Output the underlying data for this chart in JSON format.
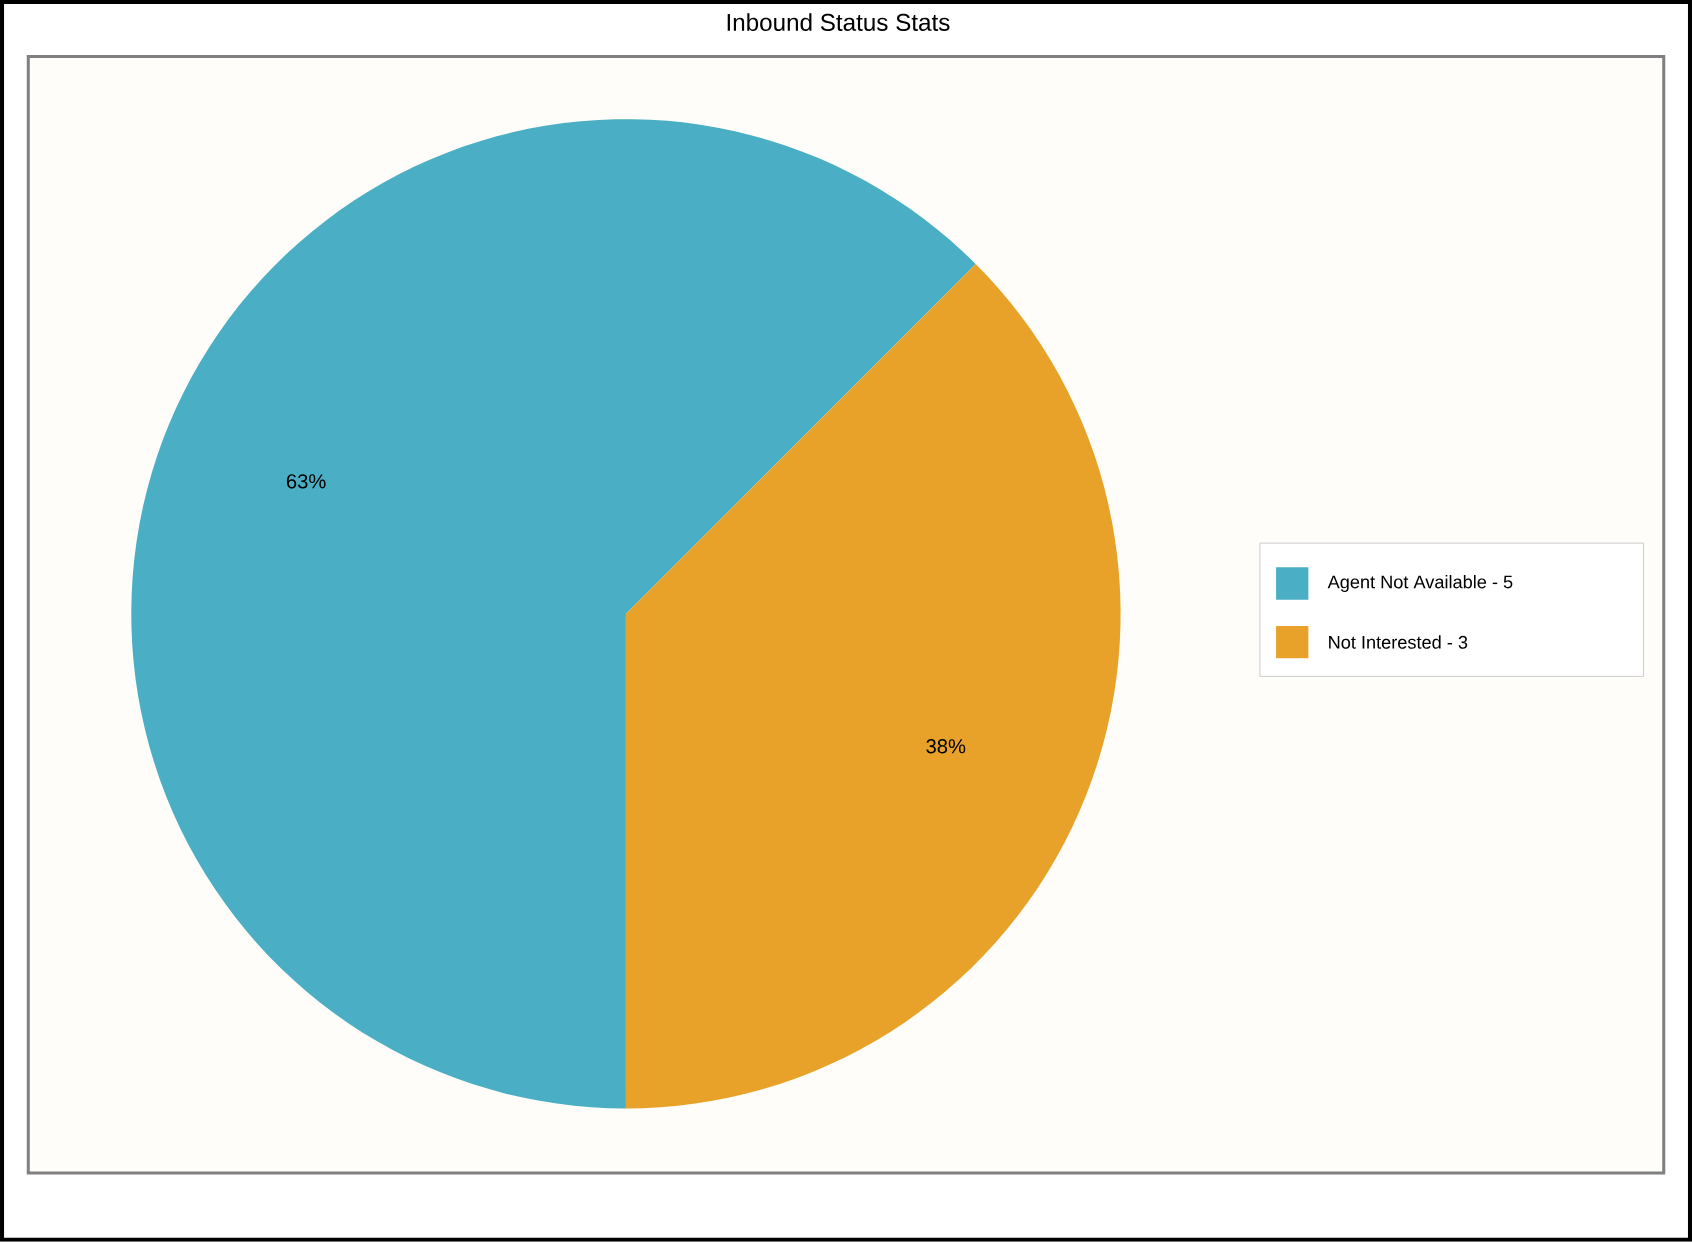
{
  "chart_data": {
    "type": "pie",
    "title": "Inbound Status Stats",
    "categories": [
      "Agent Not Available - 5",
      "Not Interested - 3"
    ],
    "values": [
      62.5,
      37.5
    ],
    "colors": [
      "#4aafc4",
      "#e8a22a"
    ],
    "value_labels": [
      "63%",
      "38%"
    ],
    "legend": "right"
  }
}
